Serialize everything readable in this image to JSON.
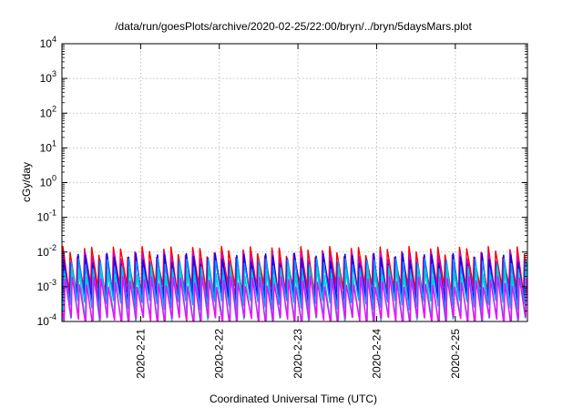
{
  "chart_data": {
    "type": "line",
    "title": "/data/run/goesPlots/archive/2020-02-25/22:00/bryn/../bryn/5daysMars.plot",
    "xlabel": "Coordinated Universal Time (UTC)",
    "ylabel": "cGy/day",
    "y_scale": "log",
    "ylim": [
      0.0001,
      10000
    ],
    "xlim": [
      "2020-02-20 00:00",
      "2020-02-25 22:00"
    ],
    "y_ticks": [
      {
        "value": 0.0001,
        "base": "10",
        "exp": "-4"
      },
      {
        "value": 0.001,
        "base": "10",
        "exp": "-3"
      },
      {
        "value": 0.01,
        "base": "10",
        "exp": "-2"
      },
      {
        "value": 0.1,
        "base": "10",
        "exp": "-1"
      },
      {
        "value": 1,
        "base": "10",
        "exp": "0"
      },
      {
        "value": 10,
        "base": "10",
        "exp": "1"
      },
      {
        "value": 100,
        "base": "10",
        "exp": "2"
      },
      {
        "value": 1000,
        "base": "10",
        "exp": "3"
      },
      {
        "value": 10000,
        "base": "10",
        "exp": "4"
      }
    ],
    "x_ticks": [
      {
        "value": "2020-02-21 00:00",
        "label": "2020-2-21"
      },
      {
        "value": "2020-02-22 00:00",
        "label": "2020-2-22"
      },
      {
        "value": "2020-02-23 00:00",
        "label": "2020-2-23"
      },
      {
        "value": "2020-02-24 00:00",
        "label": "2020-2-24"
      },
      {
        "value": "2020-02-25 00:00",
        "label": "2020-2-25"
      }
    ],
    "grid": true,
    "legend": "none",
    "series": [
      {
        "color": "#ff0000",
        "period_hours": 2.2,
        "peak": 0.011,
        "trough": 0.0009
      },
      {
        "color": "#cc00cc",
        "period_hours": 2.2,
        "peak": 0.008,
        "trough": 0.0006
      },
      {
        "color": "#0000ff",
        "period_hours": 2.2,
        "peak": 0.007,
        "trough": 0.0004
      },
      {
        "color": "#0099ff",
        "period_hours": 2.2,
        "peak": 0.005,
        "trough": 0.0003
      },
      {
        "color": "#00cccc",
        "period_hours": 2.2,
        "peak": 0.003,
        "trough": 0.0001
      },
      {
        "color": "#ff00ff",
        "period_hours": 2.2,
        "peak": 0.0015,
        "trough": 0.0001
      }
    ]
  }
}
